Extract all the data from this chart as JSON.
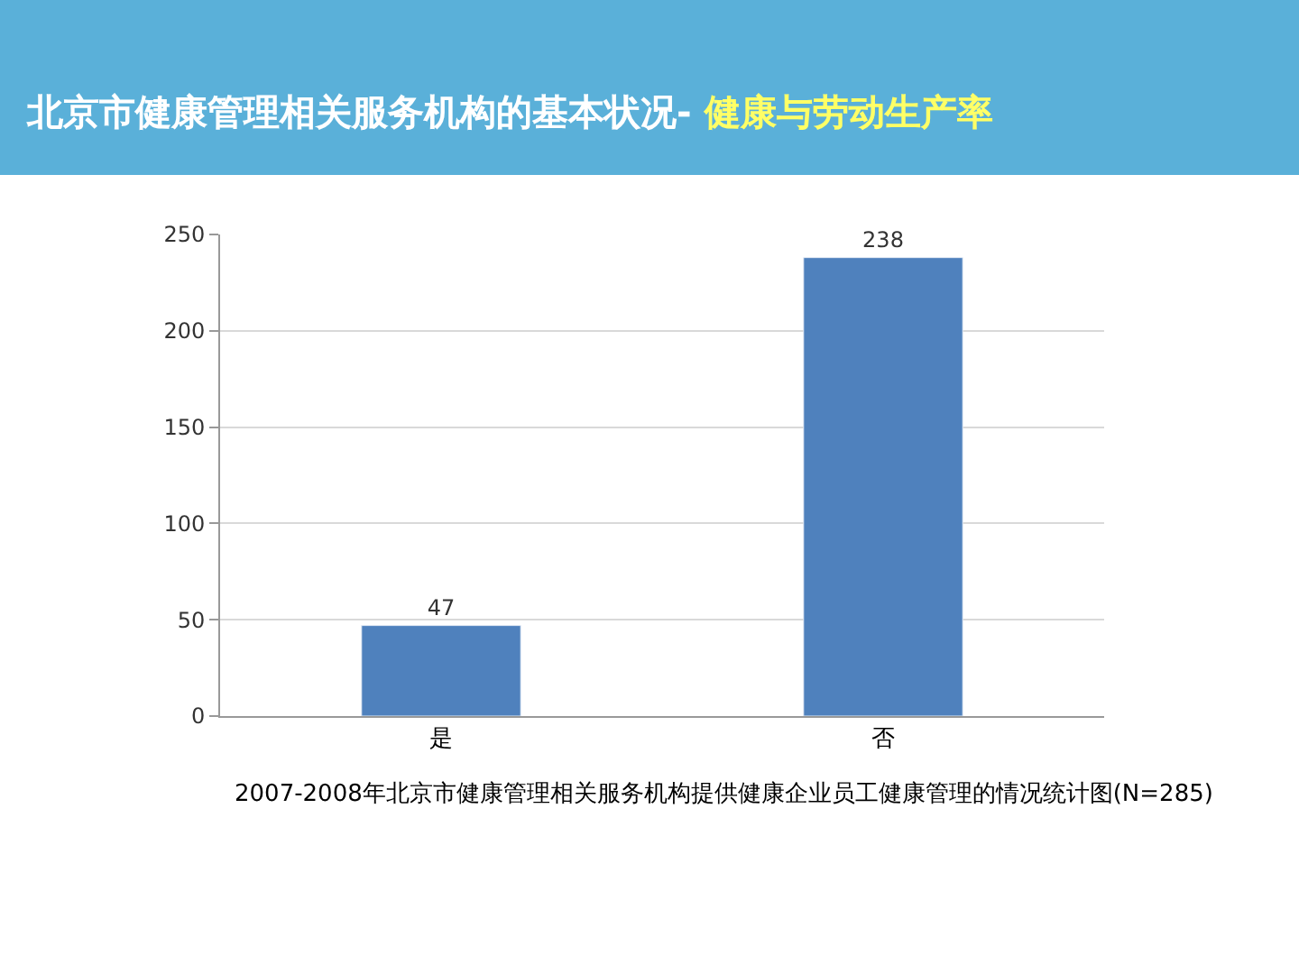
{
  "chart_data": {
    "type": "bar",
    "title": "北京市健康管理相关服务机构的基本状况- ",
    "subtitle": "健康与劳动生产率",
    "categories": [
      "是",
      "否"
    ],
    "values": [
      47,
      238
    ],
    "color": "#4f81bd",
    "ylim": [
      0,
      250
    ],
    "yticks": [
      0,
      50,
      100,
      150,
      200,
      250
    ],
    "grid": "y",
    "data_labels": true,
    "legend": false,
    "annotations": [
      "2007-2008年北京市健康管理相关服务机构提供健康企业员工健康管理的情况统计图(N=285)"
    ]
  }
}
